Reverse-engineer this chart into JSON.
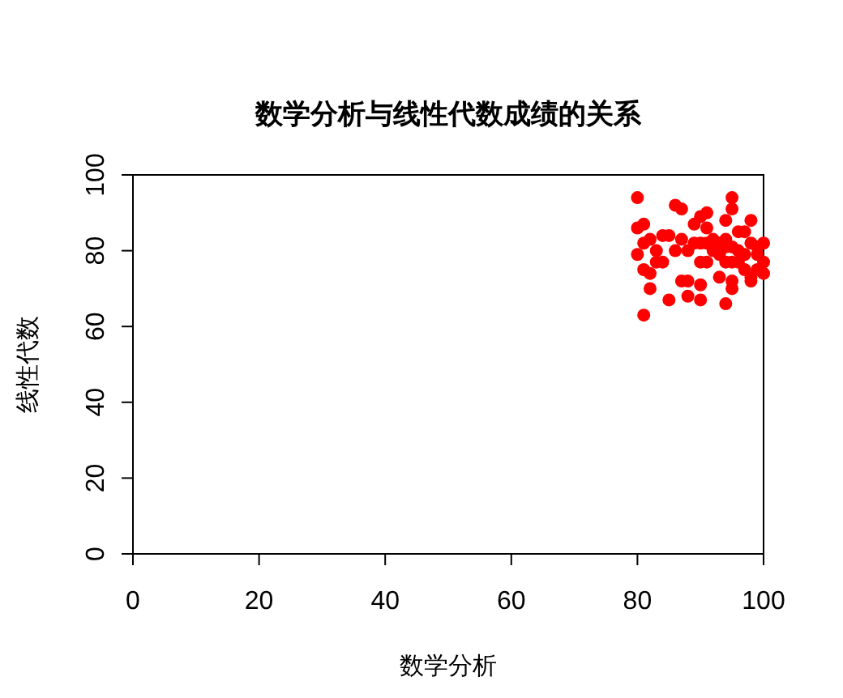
{
  "chart_data": {
    "type": "scatter",
    "title": "数学分析与线性代数成绩的关系",
    "xlabel": "数学分析",
    "ylabel": "线性代数",
    "xlim": [
      0,
      100
    ],
    "ylim": [
      0,
      100
    ],
    "xticks": [
      0,
      20,
      40,
      60,
      80,
      100
    ],
    "yticks": [
      0,
      20,
      40,
      60,
      80,
      100
    ],
    "grid": false,
    "marker": "circle",
    "series": [
      {
        "color": "#ff0000",
        "x": [
          80,
          80,
          80,
          81,
          81,
          81,
          81,
          82,
          82,
          82,
          83,
          83,
          84,
          84,
          85,
          85,
          86,
          86,
          87,
          87,
          87,
          88,
          88,
          88,
          89,
          89,
          90,
          90,
          90,
          90,
          90,
          91,
          91,
          91,
          91,
          92,
          92,
          93,
          93,
          93,
          94,
          94,
          94,
          94,
          94,
          95,
          95,
          95,
          95,
          95,
          95,
          96,
          96,
          96,
          97,
          97,
          97,
          98,
          98,
          98,
          98,
          99,
          99,
          99,
          100,
          100,
          100
        ],
        "values": [
          94,
          86,
          79,
          87,
          82,
          75,
          63,
          83,
          74,
          70,
          80,
          77,
          84,
          77,
          84,
          67,
          92,
          80,
          91,
          83,
          72,
          72,
          68,
          80,
          87,
          82,
          89,
          71,
          67,
          77,
          82,
          90,
          86,
          77,
          82,
          83,
          80,
          73,
          82,
          79,
          88,
          66,
          83,
          77,
          81,
          94,
          91,
          72,
          70,
          77,
          81,
          85,
          80,
          77,
          85,
          75,
          79,
          88,
          72,
          82,
          73,
          79,
          75,
          81,
          77,
          82,
          74
        ]
      }
    ]
  }
}
